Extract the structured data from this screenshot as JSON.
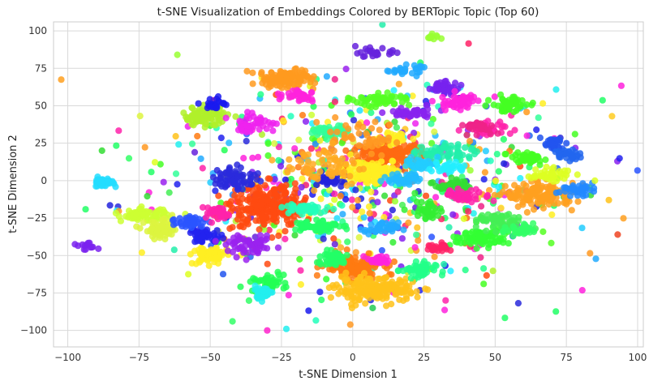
{
  "chart_data": {
    "type": "scatter",
    "title": "t-SNE Visualization of Embeddings Colored by BERTopic Topic (Top 60)",
    "xlabel": "t-SNE Dimension 1",
    "ylabel": "t-SNE Dimension 2",
    "xlim": [
      -105,
      102
    ],
    "ylim": [
      -111,
      106
    ],
    "xticks": [
      -100,
      -75,
      -50,
      -25,
      0,
      25,
      50,
      75,
      100
    ],
    "yticks": [
      100,
      75,
      50,
      25,
      0,
      -25,
      -50,
      -75,
      -100
    ],
    "grid": true,
    "background": "#ffffff",
    "grid_color": "#d9d9d9",
    "clusters": [
      {
        "x": -24,
        "y": 68,
        "sx": 5,
        "sy": 3,
        "n": 120,
        "color": "#ff9a1f"
      },
      {
        "x": -30,
        "y": -17,
        "sx": 6,
        "sy": 7,
        "n": 260,
        "color": "#ff4a10"
      },
      {
        "x": 0,
        "y": -58,
        "sx": 5,
        "sy": 4,
        "n": 160,
        "color": "#ff7a10"
      },
      {
        "x": 8,
        "y": -73,
        "sx": 7,
        "sy": 4,
        "n": 190,
        "color": "#ffc21a"
      },
      {
        "x": 12,
        "y": 17,
        "sx": 6,
        "sy": 4,
        "n": 180,
        "color": "#ff6a12"
      },
      {
        "x": 6,
        "y": 6,
        "sx": 6,
        "sy": 4,
        "n": 130,
        "color": "#ffee22"
      },
      {
        "x": 66,
        "y": -10,
        "sx": 6,
        "sy": 4,
        "n": 140,
        "color": "#ffa020"
      },
      {
        "x": -52,
        "y": 43,
        "sx": 4,
        "sy": 3,
        "n": 90,
        "color": "#b0f02a"
      },
      {
        "x": -73,
        "y": -23,
        "sx": 4,
        "sy": 2,
        "n": 80,
        "color": "#ccff33"
      },
      {
        "x": -67,
        "y": -33,
        "sx": 3,
        "sy": 3,
        "n": 70,
        "color": "#ddf540"
      },
      {
        "x": -50,
        "y": -50,
        "sx": 3,
        "sy": 3,
        "n": 70,
        "color": "#ffee22"
      },
      {
        "x": -88,
        "y": -1,
        "sx": 2,
        "sy": 1.5,
        "n": 40,
        "color": "#22ddff"
      },
      {
        "x": -93,
        "y": -44,
        "sx": 2,
        "sy": 1,
        "n": 14,
        "color": "#7a22ee"
      },
      {
        "x": -52,
        "y": -37,
        "sx": 3,
        "sy": 2.5,
        "n": 50,
        "color": "#2222ee"
      },
      {
        "x": -57,
        "y": -27,
        "sx": 3,
        "sy": 2,
        "n": 40,
        "color": "#2a55ff"
      },
      {
        "x": -48,
        "y": 51,
        "sx": 2,
        "sy": 2,
        "n": 25,
        "color": "#1a1aee"
      },
      {
        "x": -41,
        "y": 2,
        "sx": 4,
        "sy": 4,
        "n": 70,
        "color": "#2a2adc"
      },
      {
        "x": -36,
        "y": -44,
        "sx": 4,
        "sy": 3,
        "n": 60,
        "color": "#9a22ee"
      },
      {
        "x": -47,
        "y": -22,
        "sx": 3,
        "sy": 2.5,
        "n": 35,
        "color": "#ff22aa"
      },
      {
        "x": -35,
        "y": 38,
        "sx": 4,
        "sy": 3,
        "n": 45,
        "color": "#ee22ee"
      },
      {
        "x": -30,
        "y": -68,
        "sx": 3,
        "sy": 3,
        "n": 45,
        "color": "#22ff55"
      },
      {
        "x": -32,
        "y": -75,
        "sx": 2,
        "sy": 2,
        "n": 35,
        "color": "#22eeee"
      },
      {
        "x": -18,
        "y": 57,
        "sx": 3,
        "sy": 2,
        "n": 35,
        "color": "#ff22dd"
      },
      {
        "x": -13,
        "y": -30,
        "sx": 4,
        "sy": 2,
        "n": 60,
        "color": "#22ff66"
      },
      {
        "x": -17,
        "y": -19,
        "sx": 4,
        "sy": 2,
        "n": 45,
        "color": "#22ffbb"
      },
      {
        "x": -7,
        "y": -52,
        "sx": 3,
        "sy": 2.5,
        "n": 50,
        "color": "#22ff66"
      },
      {
        "x": -8,
        "y": 33,
        "sx": 3,
        "sy": 2,
        "n": 40,
        "color": "#33ff99"
      },
      {
        "x": -7,
        "y": 0,
        "sx": 2.5,
        "sy": 2,
        "n": 35,
        "color": "#2222dd"
      },
      {
        "x": 8,
        "y": 85,
        "sx": 3,
        "sy": 1.5,
        "n": 25,
        "color": "#6622dd"
      },
      {
        "x": 18,
        "y": 74,
        "sx": 3,
        "sy": 1.5,
        "n": 30,
        "color": "#22aaff"
      },
      {
        "x": 28,
        "y": 96,
        "sx": 1.5,
        "sy": 1,
        "n": 12,
        "color": "#99ff33"
      },
      {
        "x": 10,
        "y": 54,
        "sx": 5,
        "sy": 2,
        "n": 60,
        "color": "#55ff22"
      },
      {
        "x": 20,
        "y": 45,
        "sx": 4,
        "sy": 2,
        "n": 40,
        "color": "#8822ee"
      },
      {
        "x": 32,
        "y": 62,
        "sx": 3,
        "sy": 2,
        "n": 40,
        "color": "#7722ee"
      },
      {
        "x": 37,
        "y": 52,
        "sx": 3,
        "sy": 3,
        "n": 50,
        "color": "#ff22dd"
      },
      {
        "x": 48,
        "y": 35,
        "sx": 4,
        "sy": 2,
        "n": 40,
        "color": "#ff22aa"
      },
      {
        "x": 44,
        "y": 36,
        "sx": 3,
        "sy": 2,
        "n": 35,
        "color": "#ee2288"
      },
      {
        "x": 55,
        "y": 51,
        "sx": 3,
        "sy": 2.5,
        "n": 60,
        "color": "#44ff22"
      },
      {
        "x": 61,
        "y": 15,
        "sx": 3,
        "sy": 2,
        "n": 45,
        "color": "#44ff22"
      },
      {
        "x": 70,
        "y": 24,
        "sx": 2,
        "sy": 2,
        "n": 30,
        "color": "#2255ee"
      },
      {
        "x": 76,
        "y": 17,
        "sx": 2,
        "sy": 2,
        "n": 30,
        "color": "#2266ee"
      },
      {
        "x": 69,
        "y": 4,
        "sx": 4,
        "sy": 2,
        "n": 40,
        "color": "#ddff22"
      },
      {
        "x": 78,
        "y": -6,
        "sx": 3,
        "sy": 2,
        "n": 35,
        "color": "#2288ff"
      },
      {
        "x": 33,
        "y": 19,
        "sx": 5,
        "sy": 3,
        "n": 60,
        "color": "#22eeaa"
      },
      {
        "x": 24,
        "y": 11,
        "sx": 3,
        "sy": 2,
        "n": 35,
        "color": "#22ccff"
      },
      {
        "x": 34,
        "y": 9,
        "sx": 3,
        "sy": 2,
        "n": 30,
        "color": "#22eeff"
      },
      {
        "x": 18,
        "y": 1,
        "sx": 3,
        "sy": 2,
        "n": 40,
        "color": "#22bbff"
      },
      {
        "x": 35,
        "y": -3,
        "sx": 3,
        "sy": 2,
        "n": 40,
        "color": "#33dd33"
      },
      {
        "x": 40,
        "y": -10,
        "sx": 4,
        "sy": 2,
        "n": 45,
        "color": "#ff22aa"
      },
      {
        "x": 27,
        "y": -20,
        "sx": 3,
        "sy": 3,
        "n": 40,
        "color": "#33ee33"
      },
      {
        "x": 45,
        "y": -38,
        "sx": 5,
        "sy": 3,
        "n": 80,
        "color": "#33ff33"
      },
      {
        "x": 52,
        "y": -28,
        "sx": 4,
        "sy": 3,
        "n": 55,
        "color": "#44ee55"
      },
      {
        "x": 59,
        "y": -33,
        "sx": 3,
        "sy": 2,
        "n": 40,
        "color": "#33ff66"
      },
      {
        "x": 30,
        "y": -45,
        "sx": 2,
        "sy": 1.5,
        "n": 25,
        "color": "#ff2266"
      },
      {
        "x": 23,
        "y": -60,
        "sx": 3,
        "sy": 3,
        "n": 50,
        "color": "#22ff88"
      },
      {
        "x": 10,
        "y": -32,
        "sx": 3,
        "sy": 2,
        "n": 40,
        "color": "#22aaff"
      },
      {
        "x": 9,
        "y": -53,
        "sx": 2,
        "sy": 1.5,
        "n": 25,
        "color": "#ff22dd"
      },
      {
        "x": 15,
        "y": 28,
        "sx": 3,
        "sy": 2,
        "n": 30,
        "color": "#ffee22"
      },
      {
        "x": 2,
        "y": 28,
        "sx": 6,
        "sy": 6,
        "n": 50,
        "color": "#ff9922"
      },
      {
        "x": -10,
        "y": 10,
        "sx": 7,
        "sy": 7,
        "n": 60,
        "color": "#ffaa22"
      }
    ],
    "noise": {
      "n": 650,
      "cx": 0,
      "cy": 0,
      "sx": 40,
      "sy": 33
    },
    "outliers": [
      {
        "x": 93,
        "y": -36,
        "color": "#ee4422"
      },
      {
        "x": 91,
        "y": 43,
        "color": "#ffcc22"
      },
      {
        "x": -30,
        "y": -100,
        "color": "#ff22cc"
      },
      {
        "x": -88,
        "y": 20,
        "color": "#33dd33"
      },
      {
        "x": 85,
        "y": 0,
        "color": "#ddff22"
      },
      {
        "x": 7,
        "y": -85,
        "color": "#22cc55"
      },
      {
        "x": -74,
        "y": -48,
        "color": "#ffee22"
      },
      {
        "x": 75,
        "y": -5,
        "color": "#2288ff"
      }
    ]
  }
}
